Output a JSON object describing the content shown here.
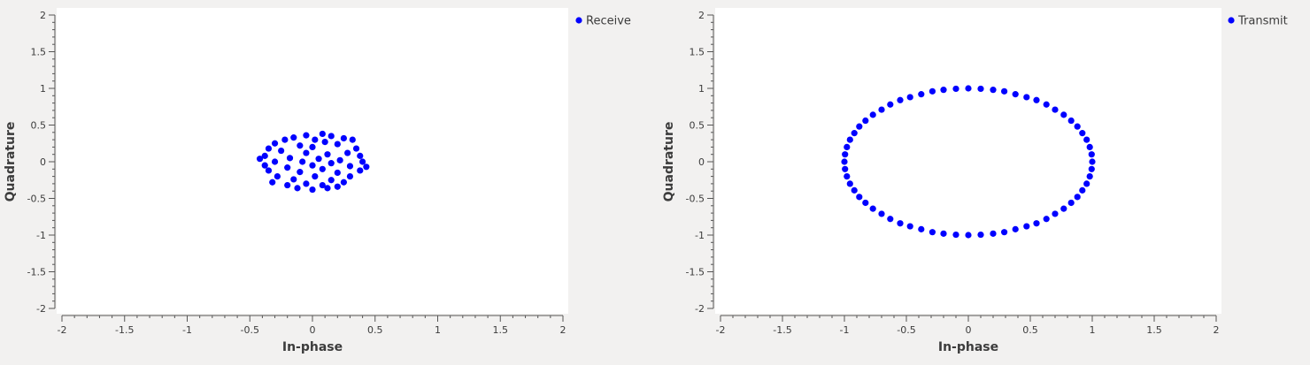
{
  "chart_data": [
    {
      "type": "scatter",
      "xlabel": "In-phase",
      "ylabel": "Quadrature",
      "xlim": [
        -2,
        2
      ],
      "ylim": [
        -2,
        2
      ],
      "xticks": [
        -2,
        -1.5,
        -1,
        -0.5,
        0,
        0.5,
        1,
        1.5,
        2
      ],
      "yticks": [
        -2,
        -1.5,
        -1,
        -0.5,
        0,
        0.5,
        1,
        1.5,
        2
      ],
      "grid": false,
      "legend_position": "outside-top-right",
      "series": [
        {
          "name": "Receive",
          "color": "#0000ff",
          "points": [
            [
              0.08,
              0.38
            ],
            [
              -0.05,
              0.36
            ],
            [
              0.15,
              0.35
            ],
            [
              -0.15,
              0.33
            ],
            [
              0.25,
              0.32
            ],
            [
              -0.22,
              0.3
            ],
            [
              0.02,
              0.3
            ],
            [
              0.32,
              0.3
            ],
            [
              -0.3,
              0.25
            ],
            [
              0.1,
              0.27
            ],
            [
              0.2,
              0.24
            ],
            [
              -0.1,
              0.22
            ],
            [
              -0.35,
              0.18
            ],
            [
              0.35,
              0.18
            ],
            [
              0.0,
              0.2
            ],
            [
              -0.25,
              0.15
            ],
            [
              0.28,
              0.12
            ],
            [
              -0.05,
              0.12
            ],
            [
              0.12,
              0.1
            ],
            [
              -0.38,
              0.08
            ],
            [
              0.38,
              0.08
            ],
            [
              -0.18,
              0.05
            ],
            [
              0.05,
              0.04
            ],
            [
              -0.42,
              0.04
            ],
            [
              0.22,
              0.02
            ],
            [
              -0.3,
              0.0
            ],
            [
              -0.08,
              0.0
            ],
            [
              0.4,
              0.0
            ],
            [
              0.15,
              -0.02
            ],
            [
              -0.38,
              -0.05
            ],
            [
              0.0,
              -0.05
            ],
            [
              0.3,
              -0.06
            ],
            [
              0.43,
              -0.07
            ],
            [
              -0.2,
              -0.08
            ],
            [
              0.08,
              -0.1
            ],
            [
              -0.35,
              -0.12
            ],
            [
              0.38,
              -0.12
            ],
            [
              -0.1,
              -0.14
            ],
            [
              0.2,
              -0.15
            ],
            [
              -0.28,
              -0.2
            ],
            [
              0.3,
              -0.2
            ],
            [
              0.02,
              -0.2
            ],
            [
              -0.15,
              -0.24
            ],
            [
              0.15,
              -0.25
            ],
            [
              -0.32,
              -0.28
            ],
            [
              0.25,
              -0.28
            ],
            [
              -0.05,
              -0.3
            ],
            [
              0.08,
              -0.32
            ],
            [
              -0.2,
              -0.32
            ],
            [
              0.0,
              -0.38
            ],
            [
              0.2,
              -0.34
            ],
            [
              -0.12,
              -0.36
            ],
            [
              0.12,
              -0.36
            ]
          ]
        }
      ]
    },
    {
      "type": "scatter",
      "xlabel": "In-phase",
      "ylabel": "Quadrature",
      "xlim": [
        -2,
        2
      ],
      "ylim": [
        -2,
        2
      ],
      "xticks": [
        -2,
        -1.5,
        -1,
        -0.5,
        0,
        0.5,
        1,
        1.5,
        2
      ],
      "yticks": [
        -2,
        -1.5,
        -1,
        -0.5,
        0,
        0.5,
        1,
        1.5,
        2
      ],
      "grid": false,
      "legend_position": "outside-top-right",
      "series": [
        {
          "name": "Transmit",
          "color": "#0000ff",
          "points": [
            [
              1.0,
              0.0
            ],
            [
              0.995,
              0.1
            ],
            [
              0.98,
              0.2
            ],
            [
              0.955,
              0.3
            ],
            [
              0.92,
              0.39
            ],
            [
              0.88,
              0.48
            ],
            [
              0.83,
              0.56
            ],
            [
              0.77,
              0.64
            ],
            [
              0.7,
              0.71
            ],
            [
              0.63,
              0.78
            ],
            [
              0.55,
              0.84
            ],
            [
              0.47,
              0.88
            ],
            [
              0.38,
              0.92
            ],
            [
              0.29,
              0.96
            ],
            [
              0.2,
              0.98
            ],
            [
              0.1,
              0.995
            ],
            [
              0.0,
              1.0
            ],
            [
              -0.1,
              0.995
            ],
            [
              -0.2,
              0.98
            ],
            [
              -0.29,
              0.96
            ],
            [
              -0.38,
              0.92
            ],
            [
              -0.47,
              0.88
            ],
            [
              -0.55,
              0.84
            ],
            [
              -0.63,
              0.78
            ],
            [
              -0.7,
              0.71
            ],
            [
              -0.77,
              0.64
            ],
            [
              -0.83,
              0.56
            ],
            [
              -0.88,
              0.48
            ],
            [
              -0.92,
              0.39
            ],
            [
              -0.955,
              0.3
            ],
            [
              -0.98,
              0.2
            ],
            [
              -0.995,
              0.1
            ],
            [
              -1.0,
              0.0
            ],
            [
              -0.995,
              -0.1
            ],
            [
              -0.98,
              -0.2
            ],
            [
              -0.955,
              -0.3
            ],
            [
              -0.92,
              -0.39
            ],
            [
              -0.88,
              -0.48
            ],
            [
              -0.83,
              -0.56
            ],
            [
              -0.77,
              -0.64
            ],
            [
              -0.7,
              -0.71
            ],
            [
              -0.63,
              -0.78
            ],
            [
              -0.55,
              -0.84
            ],
            [
              -0.47,
              -0.88
            ],
            [
              -0.38,
              -0.92
            ],
            [
              -0.29,
              -0.96
            ],
            [
              -0.2,
              -0.98
            ],
            [
              -0.1,
              -0.995
            ],
            [
              0.0,
              -1.0
            ],
            [
              0.1,
              -0.995
            ],
            [
              0.2,
              -0.98
            ],
            [
              0.29,
              -0.96
            ],
            [
              0.38,
              -0.92
            ],
            [
              0.47,
              -0.88
            ],
            [
              0.55,
              -0.84
            ],
            [
              0.63,
              -0.78
            ],
            [
              0.7,
              -0.71
            ],
            [
              0.77,
              -0.64
            ],
            [
              0.83,
              -0.56
            ],
            [
              0.88,
              -0.48
            ],
            [
              0.92,
              -0.39
            ],
            [
              0.955,
              -0.3
            ],
            [
              0.98,
              -0.2
            ],
            [
              0.995,
              -0.1
            ]
          ]
        }
      ]
    }
  ]
}
